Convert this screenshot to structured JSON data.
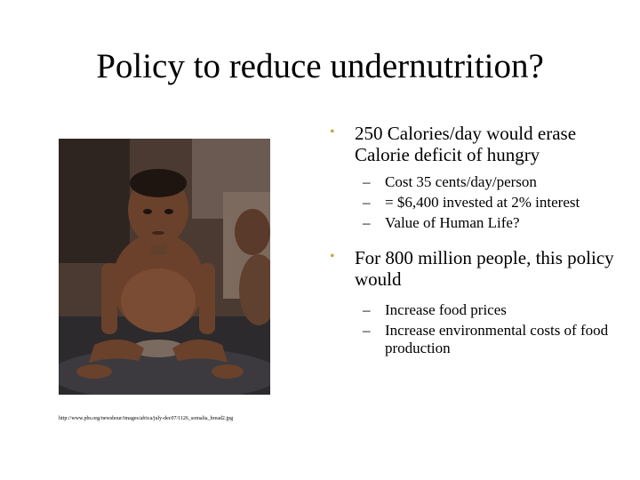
{
  "slide": {
    "title": "Policy to reduce undernutrition?",
    "photo_caption": "http://www.pbs.org/newshour/images/africa/july-dec07/1126_somalia_bread2.jpg",
    "bullets": [
      {
        "text": "250 Calories/day would erase Calorie deficit of hungry",
        "sub": [
          "Cost 35 cents/day/person",
          "= $6,400 invested at 2% interest",
          "Value of Human Life?"
        ]
      },
      {
        "text": "For 800 million people, this policy would",
        "sub": [
          "Increase food prices",
          "Increase environmental costs of food production"
        ]
      }
    ],
    "bullet_glyph": "•",
    "dash_glyph": "–",
    "colors": {
      "bullet": "#c9a64a",
      "text": "#000000",
      "background": "#ffffff"
    }
  }
}
